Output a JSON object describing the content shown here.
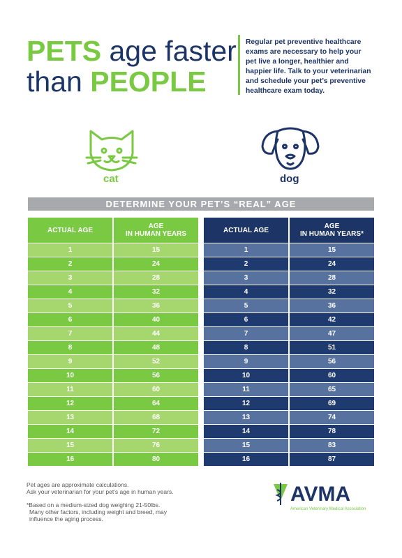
{
  "header": {
    "title": {
      "pets": "PETS",
      "age_faster": "age faster",
      "than": "than",
      "people": "PEOPLE"
    },
    "intro": [
      "Regular pet preventive healthcare",
      "exams are necessary to help your",
      "pet live a longer, healthier and",
      "happier life. Talk to your veterinarian",
      "and schedule your pet’s preventive",
      "healthcare exam today."
    ]
  },
  "animals": {
    "cat": "cat",
    "dog": "dog"
  },
  "banner": "DETERMINE YOUR PET’S “REAL” AGE",
  "cat_table": {
    "headers": {
      "actual": "ACTUAL AGE",
      "human_line1": "AGE",
      "human_line2": "IN HUMAN YEARS"
    },
    "rows": [
      [
        1,
        15
      ],
      [
        2,
        24
      ],
      [
        3,
        28
      ],
      [
        4,
        32
      ],
      [
        5,
        36
      ],
      [
        6,
        40
      ],
      [
        7,
        44
      ],
      [
        8,
        48
      ],
      [
        9,
        52
      ],
      [
        10,
        56
      ],
      [
        11,
        60
      ],
      [
        12,
        64
      ],
      [
        13,
        68
      ],
      [
        14,
        72
      ],
      [
        15,
        76
      ],
      [
        16,
        80
      ]
    ]
  },
  "dog_table": {
    "headers": {
      "actual": "ACTUAL AGE",
      "human_line1": "AGE",
      "human_line2": "IN HUMAN YEARS*"
    },
    "rows": [
      [
        1,
        15
      ],
      [
        2,
        24
      ],
      [
        3,
        28
      ],
      [
        4,
        32
      ],
      [
        5,
        36
      ],
      [
        6,
        42
      ],
      [
        7,
        47
      ],
      [
        8,
        51
      ],
      [
        9,
        56
      ],
      [
        10,
        60
      ],
      [
        11,
        65
      ],
      [
        12,
        69
      ],
      [
        13,
        74
      ],
      [
        14,
        78
      ],
      [
        15,
        83
      ],
      [
        16,
        87
      ]
    ]
  },
  "footnotes": [
    "Pet ages are approximate calculations.",
    "Ask your veterinarian for your pet’s age in human years.",
    "*Based on a medium-sized dog weighing 21-50lbs.",
    "Many other factors, including weight and breed, may",
    "influence the aging process."
  ],
  "logo": {
    "name": "AVMA",
    "subtitle": "American Veterinary Medical Association"
  }
}
